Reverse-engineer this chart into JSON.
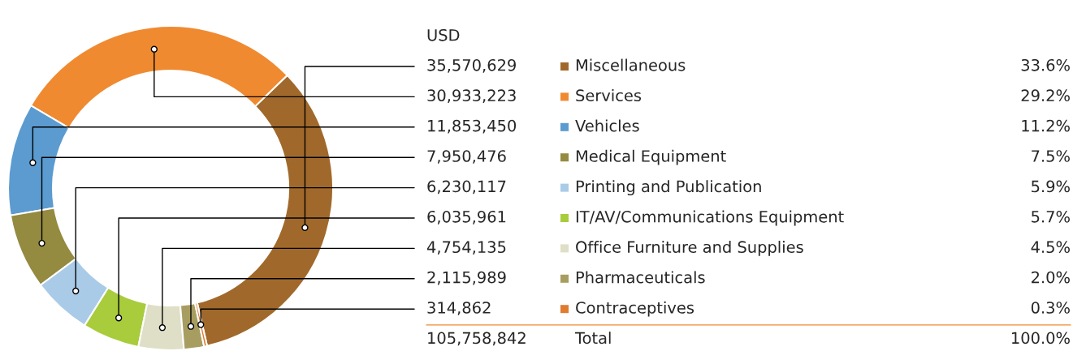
{
  "chart_data": {
    "type": "donut",
    "categories": [
      "Miscellaneous",
      "Services",
      "Vehicles",
      "Medical Equipment",
      "Printing and Publication",
      "IT/AV/Communications Equipment",
      "Office Furniture and Supplies",
      "Pharmaceuticals",
      "Contraceptives"
    ],
    "values": [
      35570629,
      30933223,
      11853450,
      7950476,
      6230117,
      6035961,
      4754135,
      2115989,
      314862
    ],
    "colors": [
      "#a0692b",
      "#f08a30",
      "#5b9bd0",
      "#948a40",
      "#a9cbe8",
      "#a8cc3c",
      "#dfdfc8",
      "#a89d60",
      "#e07b30"
    ],
    "value_labels": [
      "35,570,629",
      "30,933,223",
      "11,853,450",
      "7,950,476",
      "6,230,117",
      "6,035,961",
      "4,754,135",
      "2,115,989",
      "314,862"
    ],
    "annotations": [
      "USD",
      "33.6%",
      "29.2%",
      "11.2%",
      "7.5%",
      "5.9%",
      "5.7%",
      "4.5%",
      "2.0%",
      "0.3%",
      "105,758,842",
      "Total",
      "100.0%"
    ],
    "legend": "right"
  }
}
